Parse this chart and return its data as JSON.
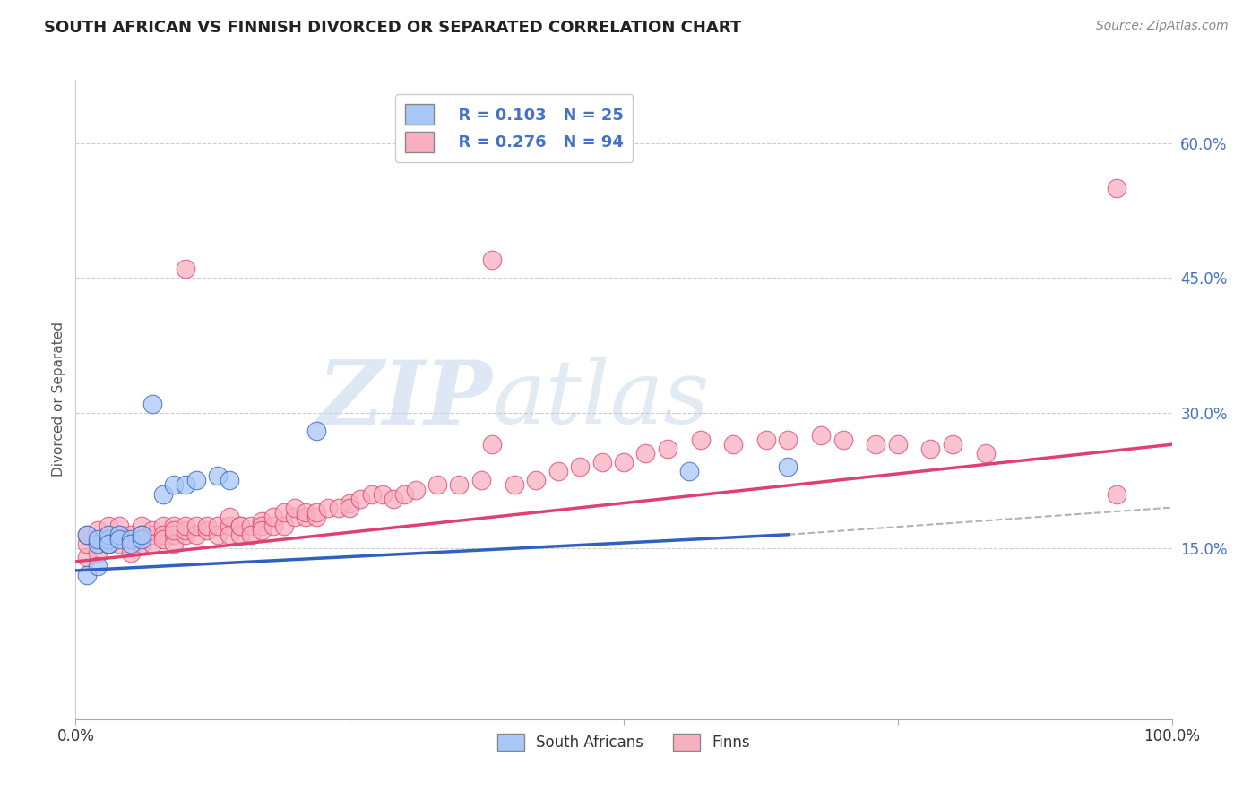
{
  "title": "SOUTH AFRICAN VS FINNISH DIVORCED OR SEPARATED CORRELATION CHART",
  "source": "Source: ZipAtlas.com",
  "ylabel": "Divorced or Separated",
  "xlim": [
    0.0,
    1.0
  ],
  "ylim": [
    -0.04,
    0.67
  ],
  "yticks": [
    0.15,
    0.3,
    0.45,
    0.6
  ],
  "ytick_labels": [
    "15.0%",
    "30.0%",
    "45.0%",
    "60.0%"
  ],
  "legend_r1": "R = 0.103",
  "legend_n1": "N = 25",
  "legend_r2": "R = 0.276",
  "legend_n2": "N = 94",
  "sa_color": "#a8c8f8",
  "finn_color": "#f8b0c0",
  "sa_line_color": "#3060c0",
  "finn_line_color": "#e04070",
  "watermark_zip": "ZIP",
  "watermark_atlas": "atlas",
  "background_color": "#ffffff",
  "grid_color": "#cccccc",
  "sa_scatter_x": [
    0.01,
    0.01,
    0.02,
    0.02,
    0.02,
    0.03,
    0.03,
    0.03,
    0.03,
    0.04,
    0.04,
    0.05,
    0.05,
    0.06,
    0.06,
    0.07,
    0.08,
    0.09,
    0.1,
    0.11,
    0.13,
    0.14,
    0.22,
    0.56,
    0.65
  ],
  "sa_scatter_y": [
    0.12,
    0.165,
    0.155,
    0.16,
    0.13,
    0.155,
    0.16,
    0.165,
    0.155,
    0.165,
    0.16,
    0.16,
    0.155,
    0.16,
    0.165,
    0.31,
    0.21,
    0.22,
    0.22,
    0.225,
    0.23,
    0.225,
    0.28,
    0.235,
    0.24
  ],
  "finn_scatter_x": [
    0.01,
    0.01,
    0.01,
    0.02,
    0.02,
    0.03,
    0.03,
    0.04,
    0.04,
    0.04,
    0.05,
    0.05,
    0.05,
    0.06,
    0.06,
    0.06,
    0.06,
    0.07,
    0.07,
    0.07,
    0.08,
    0.08,
    0.08,
    0.09,
    0.09,
    0.09,
    0.09,
    0.1,
    0.1,
    0.1,
    0.11,
    0.11,
    0.12,
    0.12,
    0.13,
    0.13,
    0.14,
    0.14,
    0.14,
    0.15,
    0.15,
    0.15,
    0.16,
    0.16,
    0.17,
    0.17,
    0.17,
    0.18,
    0.18,
    0.19,
    0.19,
    0.2,
    0.2,
    0.21,
    0.21,
    0.22,
    0.22,
    0.23,
    0.24,
    0.25,
    0.25,
    0.26,
    0.27,
    0.28,
    0.29,
    0.3,
    0.31,
    0.33,
    0.35,
    0.37,
    0.38,
    0.4,
    0.42,
    0.44,
    0.46,
    0.48,
    0.5,
    0.52,
    0.54,
    0.57,
    0.6,
    0.63,
    0.65,
    0.68,
    0.7,
    0.73,
    0.75,
    0.78,
    0.8,
    0.83,
    0.38,
    0.95,
    0.95,
    0.1
  ],
  "finn_scatter_y": [
    0.14,
    0.155,
    0.165,
    0.145,
    0.17,
    0.155,
    0.175,
    0.165,
    0.155,
    0.175,
    0.16,
    0.165,
    0.145,
    0.155,
    0.165,
    0.175,
    0.165,
    0.165,
    0.17,
    0.155,
    0.175,
    0.165,
    0.16,
    0.175,
    0.165,
    0.155,
    0.17,
    0.165,
    0.17,
    0.175,
    0.165,
    0.175,
    0.17,
    0.175,
    0.165,
    0.175,
    0.175,
    0.165,
    0.185,
    0.175,
    0.165,
    0.175,
    0.175,
    0.165,
    0.18,
    0.175,
    0.17,
    0.175,
    0.185,
    0.175,
    0.19,
    0.185,
    0.195,
    0.185,
    0.19,
    0.185,
    0.19,
    0.195,
    0.195,
    0.2,
    0.195,
    0.205,
    0.21,
    0.21,
    0.205,
    0.21,
    0.215,
    0.22,
    0.22,
    0.225,
    0.265,
    0.22,
    0.225,
    0.235,
    0.24,
    0.245,
    0.245,
    0.255,
    0.26,
    0.27,
    0.265,
    0.27,
    0.27,
    0.275,
    0.27,
    0.265,
    0.265,
    0.26,
    0.265,
    0.255,
    0.47,
    0.55,
    0.21,
    0.46
  ],
  "sa_line_x": [
    0.0,
    0.65
  ],
  "sa_line_y": [
    0.125,
    0.165
  ],
  "finn_line_x": [
    0.0,
    1.0
  ],
  "finn_line_y": [
    0.135,
    0.265
  ],
  "dash_line_x": [
    0.65,
    1.0
  ],
  "dash_line_y": [
    0.165,
    0.195
  ]
}
